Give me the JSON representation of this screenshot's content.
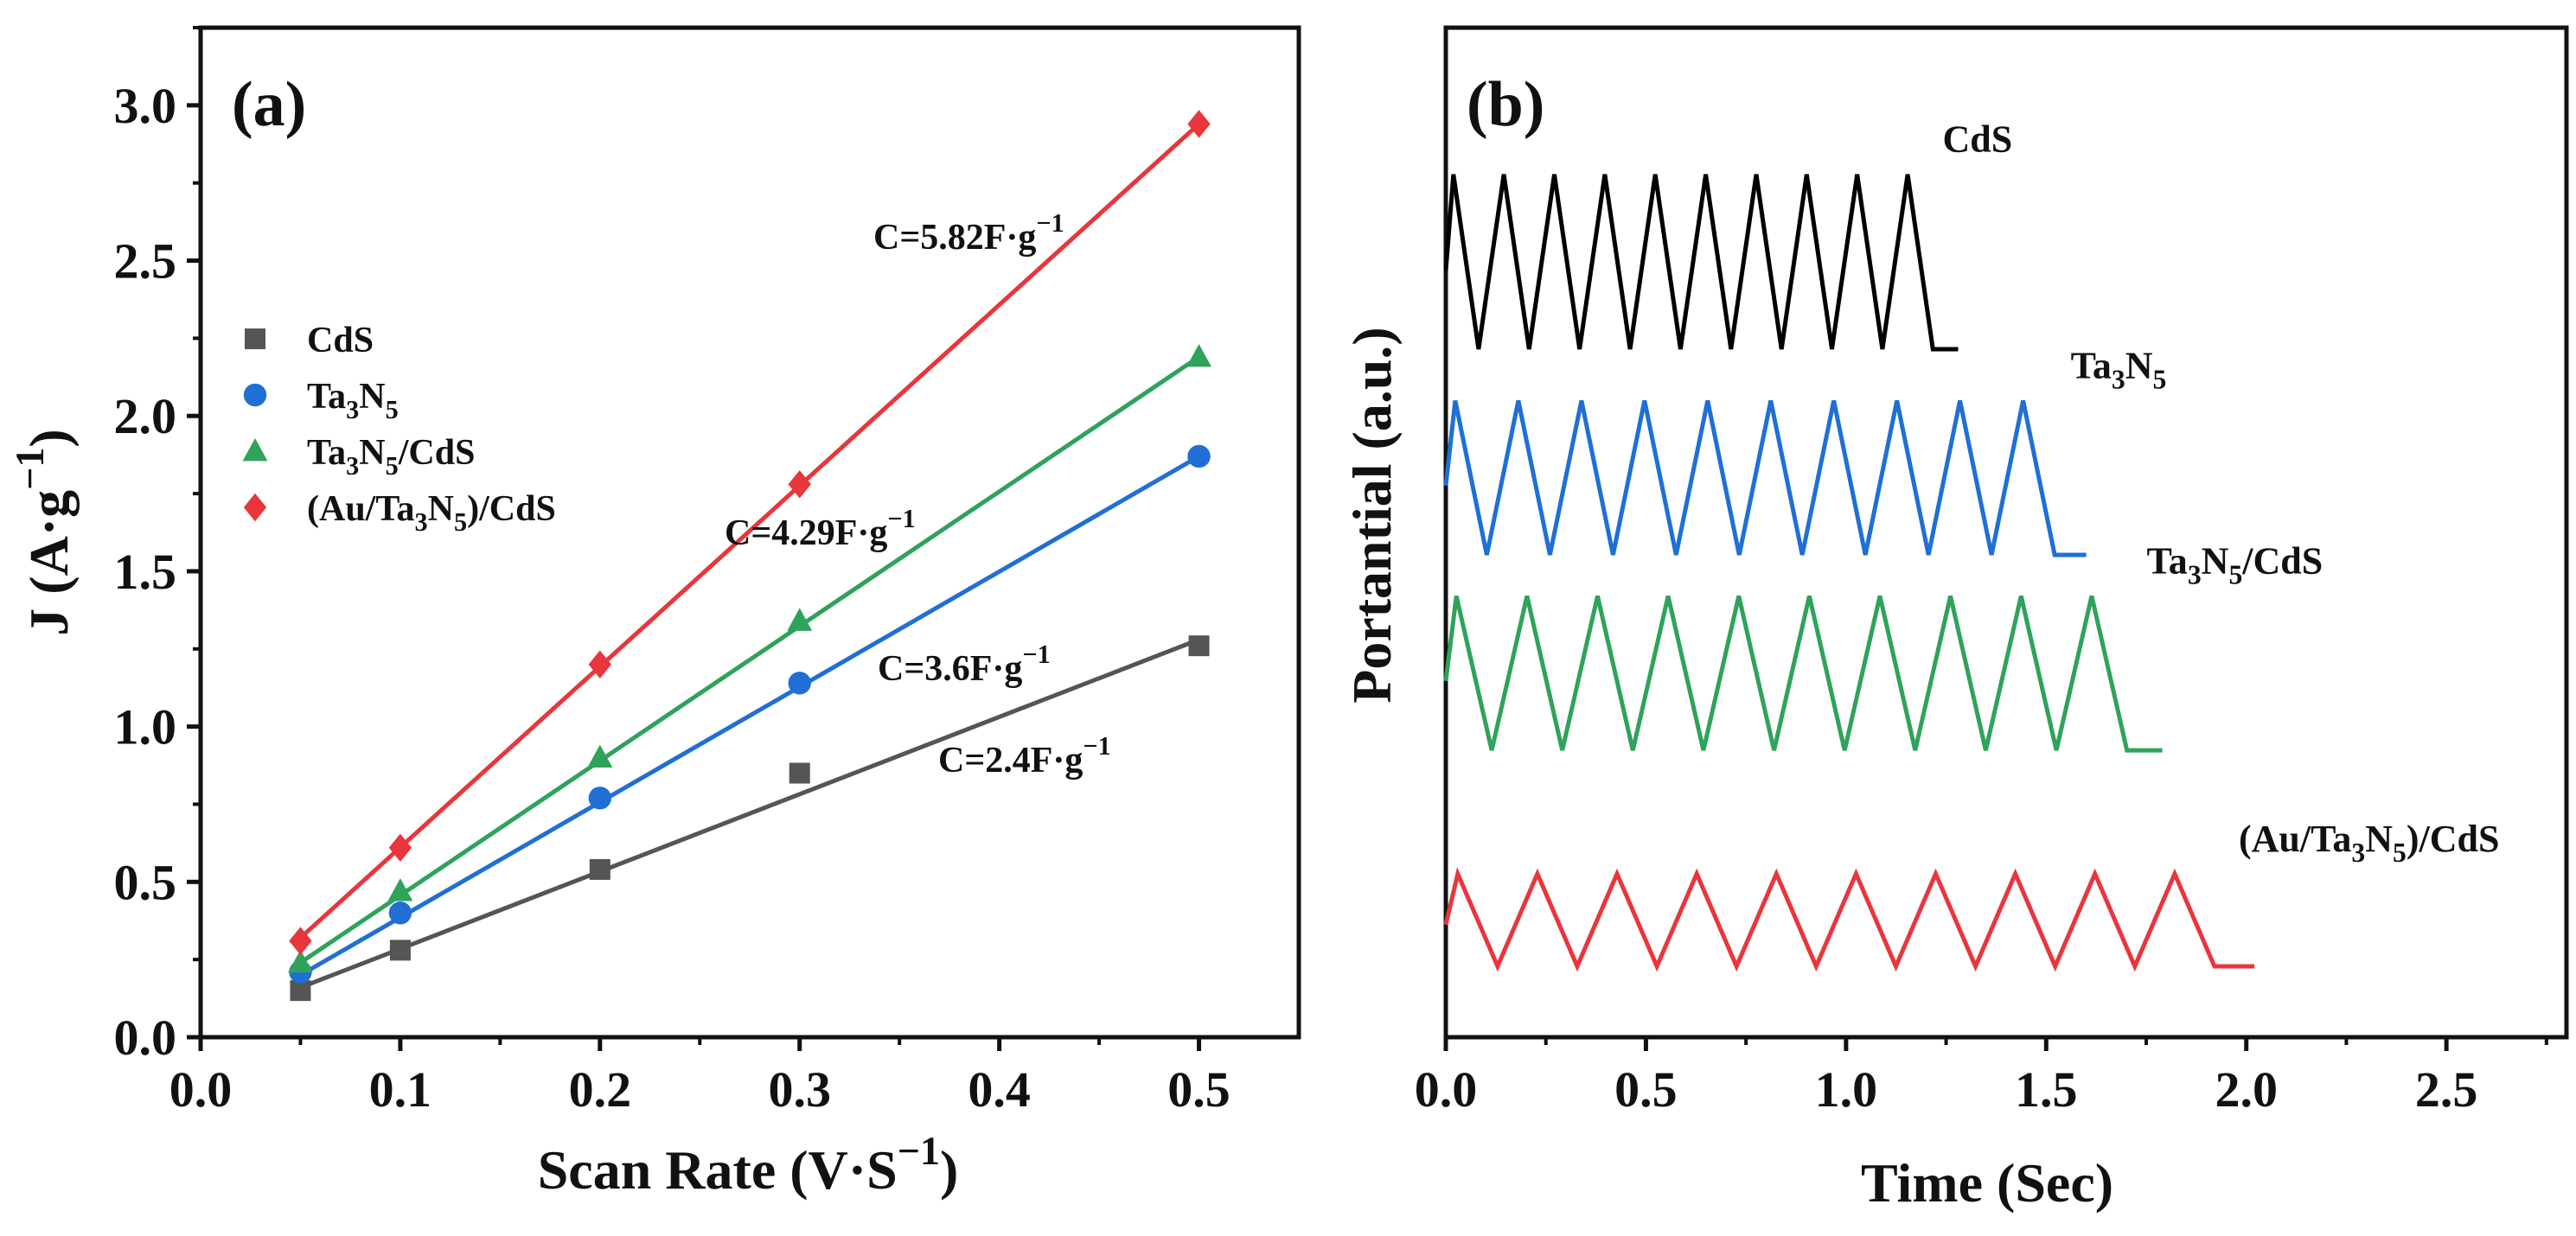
{
  "chart_data": [
    {
      "panel": "(a)",
      "type": "scatter",
      "xlabel": "Scan Rate (V·S⁻¹)",
      "ylabel": "J (A·g⁻¹)",
      "xlim": [
        0.0,
        0.55
      ],
      "ylim": [
        0.0,
        3.25
      ],
      "xticks": [
        0.0,
        0.1,
        0.2,
        0.3,
        0.4,
        0.5
      ],
      "yticks": [
        0.0,
        0.5,
        1.0,
        1.5,
        2.0,
        2.5,
        3.0
      ],
      "xtick_labels": [
        "0.0",
        "0.1",
        "0.2",
        "0.3",
        "0.4",
        "0.5"
      ],
      "ytick_labels": [
        "0.0",
        "0.5",
        "1.0",
        "1.5",
        "2.0",
        "2.5",
        "3.0"
      ],
      "x": [
        0.05,
        0.1,
        0.2,
        0.3,
        0.5
      ],
      "legend_position": "middle-left",
      "series": [
        {
          "name": "CdS",
          "label_main": "CdS",
          "marker": "square",
          "color": "#555555",
          "values": [
            0.15,
            0.28,
            0.54,
            0.85,
            1.26
          ],
          "fit": [
            0.05,
            0.16,
            0.5,
            1.28
          ],
          "annotation": "C=2.4F·g⁻¹",
          "annot_main": "C=2.4F·g",
          "annot_sup": "−1"
        },
        {
          "name": "Ta3N5",
          "label_parts": [
            "Ta",
            "3",
            "N",
            "5"
          ],
          "marker": "circle",
          "color": "#1f6fd6",
          "values": [
            0.21,
            0.4,
            0.77,
            1.14,
            1.87
          ],
          "fit": [
            0.05,
            0.2,
            0.5,
            1.87
          ],
          "annotation": "C=3.6F·g⁻¹",
          "annot_main": "C=3.6F·g",
          "annot_sup": "−1"
        },
        {
          "name": "Ta3N5/CdS",
          "label_parts": [
            "Ta",
            "3",
            "N",
            "5",
            "/CdS"
          ],
          "marker": "triangle",
          "color": "#2ea35a",
          "values": [
            0.24,
            0.47,
            0.9,
            1.34,
            2.19
          ],
          "fit": [
            0.05,
            0.24,
            0.5,
            2.19
          ],
          "annotation": "C=4.29F·g⁻¹",
          "annot_main": "C=4.29F·g",
          "annot_sup": "−1"
        },
        {
          "name": "(Au/Ta3N5)/CdS",
          "label_parts": [
            "(Au/Ta",
            "3",
            "N",
            "5",
            ")/CdS"
          ],
          "marker": "diamond",
          "color": "#e8363c",
          "values": [
            0.31,
            0.61,
            1.2,
            1.78,
            2.94
          ],
          "fit": [
            0.05,
            0.32,
            0.5,
            2.94
          ],
          "annotation": "C=5.82F·g⁻¹",
          "annot_main": "C=5.82F·g",
          "annot_sup": "−1"
        }
      ]
    },
    {
      "panel": "(b)",
      "type": "line",
      "xlabel": "Time (Sec)",
      "ylabel": "Portantial (a.u.)",
      "xlim": [
        0.0,
        2.8
      ],
      "xticks": [
        0.0,
        0.5,
        1.0,
        1.5,
        2.0,
        2.5
      ],
      "xtick_labels": [
        "0.0",
        "0.5",
        "1.0",
        "1.5",
        "2.0",
        "2.5"
      ],
      "y_ticks_shown": false,
      "series": [
        {
          "name": "CdS",
          "label_parts": [
            "CdS"
          ],
          "color": "#000000",
          "end_time": 1.28,
          "cycles": 10,
          "baseline": 3.0,
          "amplitude": 0.85
        },
        {
          "name": "Ta3N5",
          "label_parts": [
            "Ta",
            "3",
            "N",
            "5"
          ],
          "color": "#1f6fd6",
          "end_time": 1.6,
          "cycles": 10,
          "baseline": 2.0,
          "amplitude": 0.75
        },
        {
          "name": "Ta3N5/CdS",
          "label_parts": [
            "Ta",
            "3",
            "N",
            "5",
            "/CdS"
          ],
          "color": "#2ea35a",
          "end_time": 1.79,
          "cycles": 10,
          "baseline": 1.05,
          "amplitude": 0.75
        },
        {
          "name": "(Au/Ta3N5)/CdS",
          "label_parts": [
            "(Au/Ta",
            "3",
            "N",
            "5",
            ")/CdS"
          ],
          "color": "#e8363c",
          "end_time": 2.02,
          "cycles": 10,
          "baseline": 0.0,
          "amplitude": 0.45
        }
      ]
    }
  ]
}
